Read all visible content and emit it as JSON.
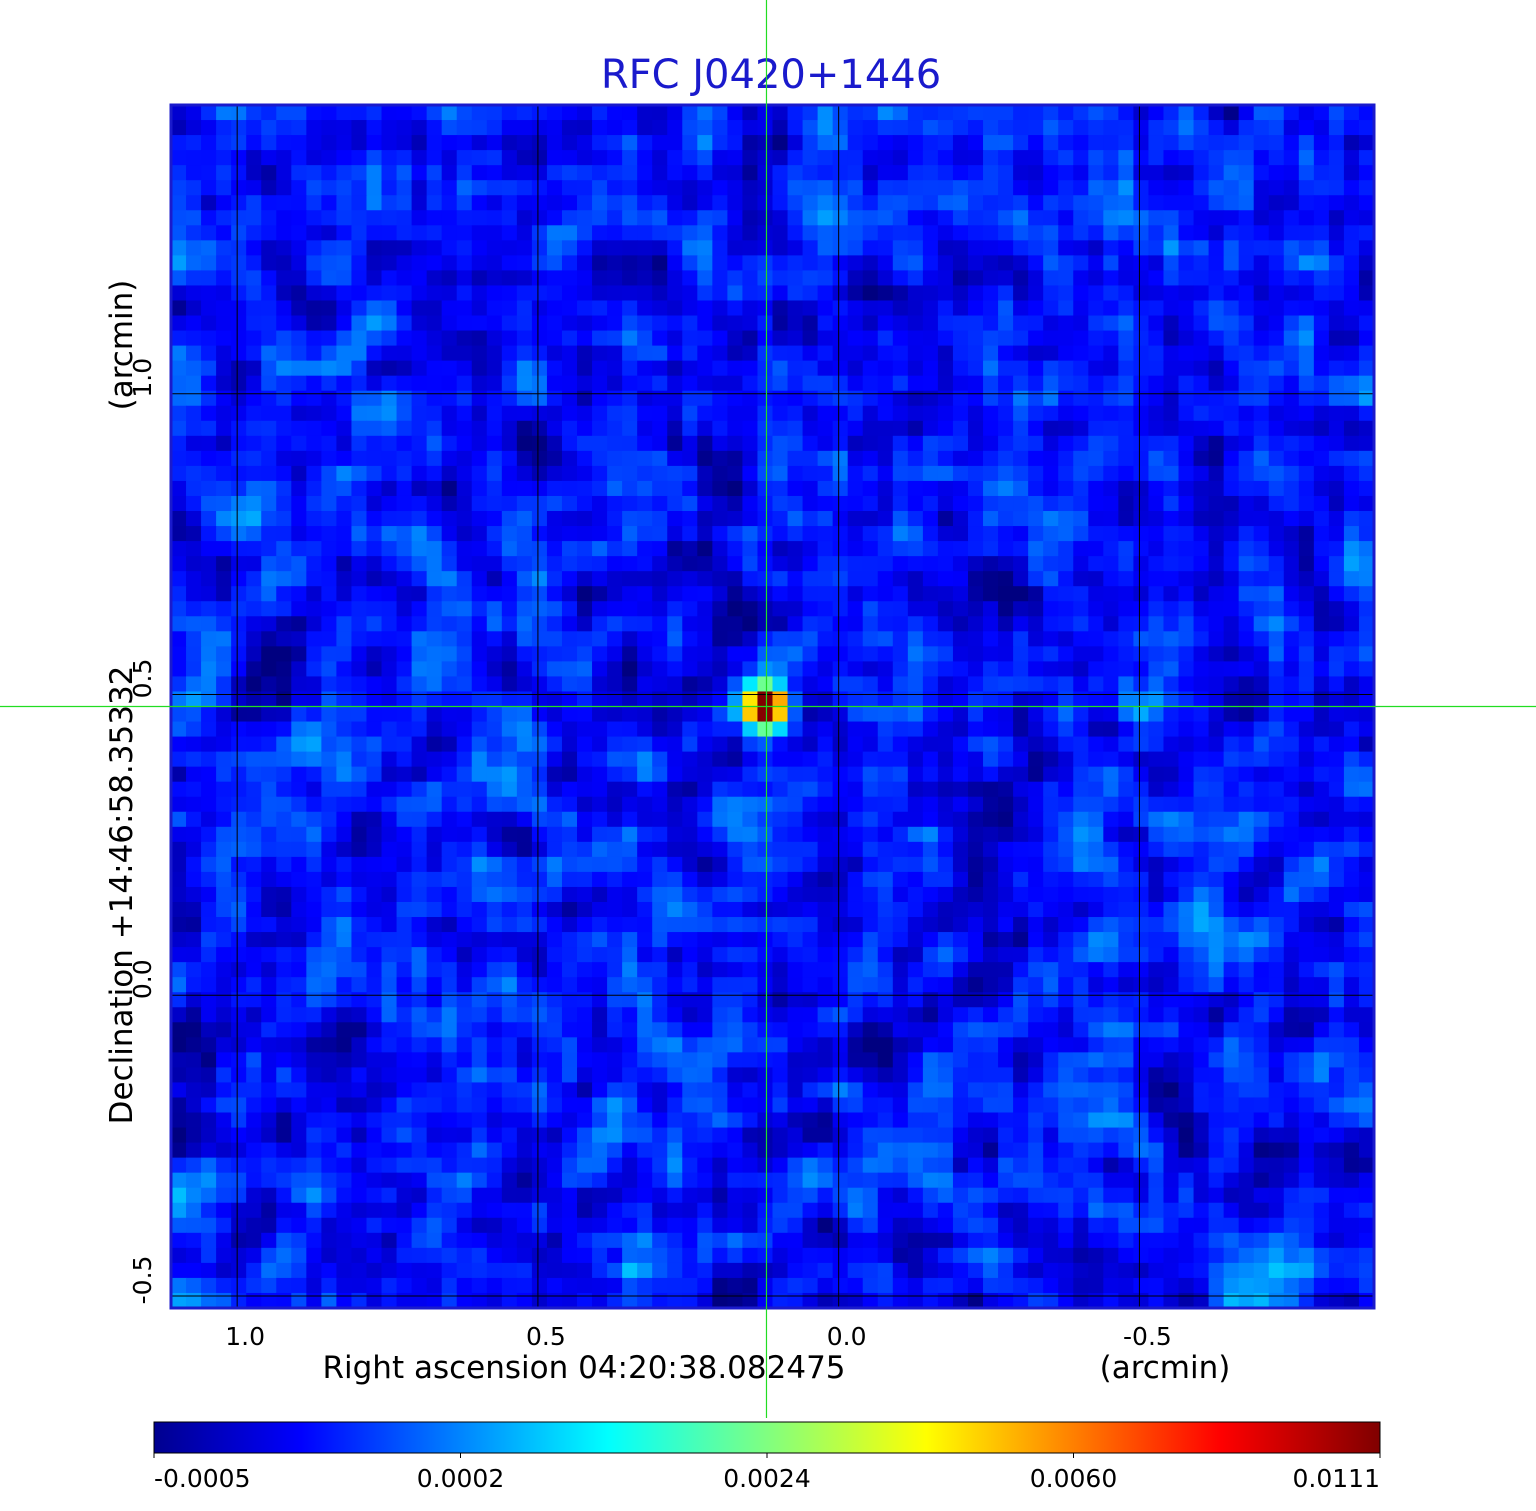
{
  "chart_data": {
    "type": "heatmap",
    "title": "RFC J0420+1446",
    "xlabel": "Right ascension  04:20:38.082475",
    "xunit": "(arcmin)",
    "ylabel": "Declination  +14:46:58.35332",
    "yunit": "(arcmin)",
    "xlim": [
      1.11,
      -0.89
    ],
    "ylim": [
      -0.52,
      1.48
    ],
    "x_ticks": [
      {
        "value": 1.0,
        "label": "1.0"
      },
      {
        "value": 0.5,
        "label": "0.5"
      },
      {
        "value": 0.0,
        "label": "0.0"
      },
      {
        "value": -0.5,
        "label": "-0.5"
      }
    ],
    "y_ticks": [
      {
        "value": -0.5,
        "label": "-0.5"
      },
      {
        "value": 0.0,
        "label": "0.0"
      },
      {
        "value": 0.5,
        "label": "0.5"
      },
      {
        "value": 1.0,
        "label": "1.0"
      }
    ],
    "grid": true,
    "colormap": "jet",
    "colorbar": {
      "ticks": [
        "-0.0005",
        "0.0002",
        "0.0024",
        "0.0060",
        "0.0111"
      ],
      "min": -0.0005,
      "max": 0.0111
    },
    "peak": {
      "x": 0.12,
      "y": 0.48,
      "value": 0.0111
    },
    "crosshair": {
      "x": 0.12,
      "y": 0.48,
      "color": "#22dd22"
    },
    "background_level": 0.0
  },
  "colors": {
    "title": "#1a1acc",
    "frame": "#1a1acc",
    "grid": "#000000",
    "crosshair": "#22dd22",
    "text": "#000000"
  }
}
